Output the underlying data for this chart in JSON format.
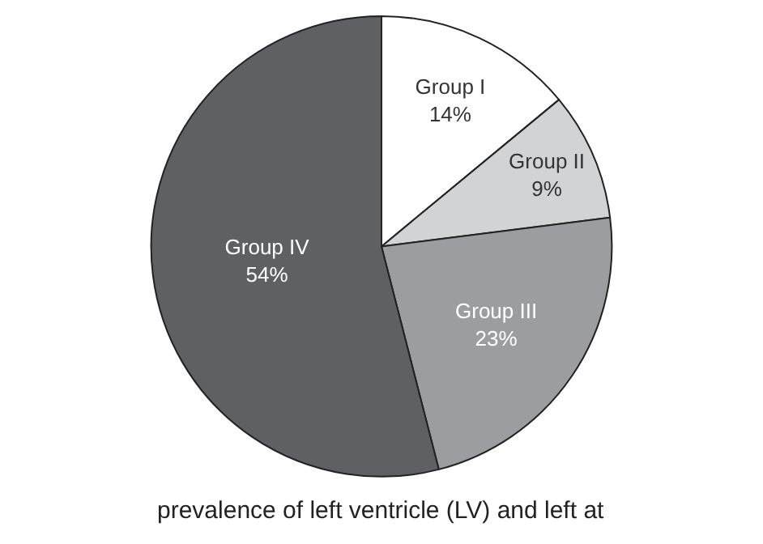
{
  "chart_data": {
    "type": "pie",
    "categories": [
      "Group I",
      "Group II",
      "Group III",
      "Group IV"
    ],
    "values": [
      14,
      9,
      23,
      54
    ],
    "value_labels": [
      "14%",
      "9%",
      "23%",
      "54%"
    ],
    "colors": [
      "#ffffff",
      "#d2d3d5",
      "#9c9da0",
      "#5f6064"
    ],
    "legend": false,
    "annotations": [
      "prevalence of left ventricle (LV) and left at"
    ]
  }
}
